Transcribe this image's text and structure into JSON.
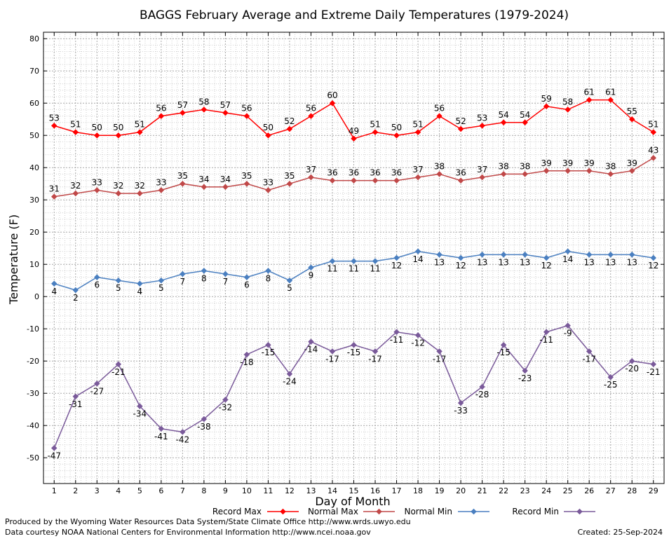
{
  "chart_data": {
    "type": "line",
    "title": "BAGGS February Average and Extreme Daily Temperatures (1979-2024)",
    "xlabel": "Day of Month",
    "ylabel": "Temperature (F)",
    "x": [
      1,
      2,
      3,
      4,
      5,
      6,
      7,
      8,
      9,
      10,
      11,
      12,
      13,
      14,
      15,
      16,
      17,
      18,
      19,
      20,
      21,
      22,
      23,
      24,
      25,
      26,
      27,
      28,
      29
    ],
    "xlim": [
      0.5,
      29.5
    ],
    "ylim": [
      -58,
      82
    ],
    "yticks": [
      -50,
      -40,
      -30,
      -20,
      -10,
      0,
      10,
      20,
      30,
      40,
      50,
      60,
      70,
      80
    ],
    "grid": true,
    "legend_position": "bottom",
    "series": [
      {
        "name": "Record Max",
        "color": "#ff0000",
        "label_side": "above",
        "values": [
          53,
          51,
          50,
          50,
          51,
          56,
          57,
          58,
          57,
          56,
          50,
          52,
          56,
          60,
          49,
          51,
          50,
          51,
          56,
          52,
          53,
          54,
          54,
          59,
          58,
          61,
          61,
          55,
          51
        ]
      },
      {
        "name": "Normal Max",
        "color": "#c04848",
        "label_side": "above",
        "values": [
          31,
          32,
          33,
          32,
          32,
          33,
          35,
          34,
          34,
          35,
          33,
          35,
          37,
          36,
          36,
          36,
          36,
          37,
          38,
          36,
          37,
          38,
          38,
          39,
          39,
          39,
          38,
          39,
          43
        ]
      },
      {
        "name": "Normal Min",
        "color": "#4a7fc0",
        "label_side": "below",
        "values": [
          4,
          2,
          6,
          5,
          4,
          5,
          7,
          8,
          7,
          6,
          8,
          5,
          9,
          11,
          11,
          11,
          12,
          14,
          13,
          12,
          13,
          13,
          13,
          12,
          14,
          13,
          13,
          13,
          12
        ]
      },
      {
        "name": "Record Min",
        "color": "#7a5a9a",
        "label_side": "below",
        "values": [
          -47,
          -31,
          -27,
          -21,
          -34,
          -41,
          -42,
          -38,
          -32,
          -18,
          -15,
          -24,
          -14,
          -17,
          -15,
          -17,
          -11,
          -12,
          -17,
          -33,
          -28,
          -15,
          -23,
          -11,
          -9,
          -17,
          -25,
          -20,
          -21
        ]
      }
    ]
  },
  "footer": {
    "produced_by": "Produced by the Wyoming Water Resources Data System/State Climate Office http://www.wrds.uwyo.edu",
    "data_courtesy": "Data courtesy NOAA National Centers for Environmental Information http://www.ncei.noaa.gov",
    "created": "Created: 25-Sep-2024"
  }
}
